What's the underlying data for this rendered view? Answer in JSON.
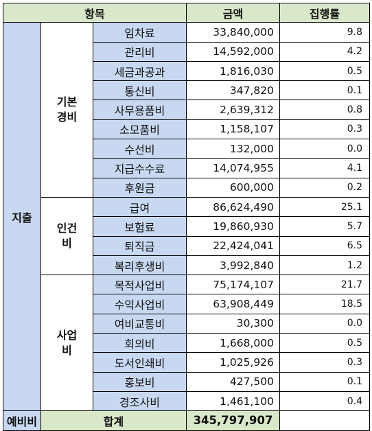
{
  "header": {
    "item": "항목",
    "amount": "금액",
    "rate": "집행률"
  },
  "side_label": "지출",
  "groups": [
    {
      "label": "기본\n경비",
      "rows": [
        {
          "name": "임차료",
          "amount": "33,840,000",
          "rate": "9.8"
        },
        {
          "name": "관리비",
          "amount": "14,592,000",
          "rate": "4.2"
        },
        {
          "name": "세금과공과",
          "amount": "1,816,030",
          "rate": "0.5"
        },
        {
          "name": "통신비",
          "amount": "347,820",
          "rate": "0.1"
        },
        {
          "name": "사무용품비",
          "amount": "2,639,312",
          "rate": "0.8"
        },
        {
          "name": "소모품비",
          "amount": "1,158,107",
          "rate": "0.3"
        },
        {
          "name": "수선비",
          "amount": "132,000",
          "rate": "0.0"
        },
        {
          "name": "지급수수료",
          "amount": "14,074,955",
          "rate": "4.1"
        },
        {
          "name": "후원금",
          "amount": "600,000",
          "rate": "0.2"
        }
      ]
    },
    {
      "label": "인건비",
      "rows": [
        {
          "name": "급여",
          "amount": "86,624,490",
          "rate": "25.1"
        },
        {
          "name": "보험료",
          "amount": "19,860,930",
          "rate": "5.7"
        },
        {
          "name": "퇴직금",
          "amount": "22,424,041",
          "rate": "6.5"
        },
        {
          "name": "복리후생비",
          "amount": "3,992,840",
          "rate": "1.2"
        }
      ]
    },
    {
      "label": "사업비",
      "rows": [
        {
          "name": "목적사업비",
          "amount": "75,174,107",
          "rate": "21.7"
        },
        {
          "name": "수익사업비",
          "amount": "63,908,449",
          "rate": "18.5"
        },
        {
          "name": "여비교통비",
          "amount": "30,300",
          "rate": "0.0"
        },
        {
          "name": "회의비",
          "amount": "1,668,000",
          "rate": "0.5"
        },
        {
          "name": "도서인쇄비",
          "amount": "1,025,926",
          "rate": "0.3"
        },
        {
          "name": "홍보비",
          "amount": "427,500",
          "rate": "0.1"
        },
        {
          "name": "경조사비",
          "amount": "1,461,100",
          "rate": "0.4"
        }
      ]
    }
  ],
  "footer": {
    "reserve": "예비비",
    "total_label": "합계",
    "total_amount": "345,797,907"
  }
}
